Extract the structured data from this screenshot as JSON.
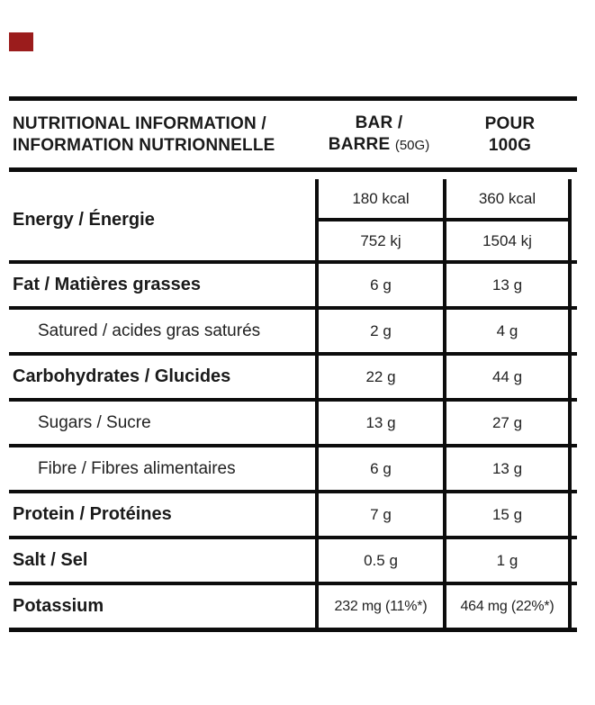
{
  "page": {
    "marker_color": "#9b1c1c"
  },
  "table": {
    "header": {
      "col1_line1": "NUTRITIONAL INFORMATION /",
      "col1_line2": "INFORMATION NUTRIONNELLE",
      "col2_line1": "BAR /",
      "col2_line2_bold": "BARRE",
      "col2_line2_note": "(50G)",
      "col3_line1": "POUR",
      "col3_line2": "100G"
    },
    "energy": {
      "label": "Energy / Énergie",
      "kcal_bar": "180 kcal",
      "kcal_per100": "360 kcal",
      "kj_bar": "752 kj",
      "kj_per100": "1504 kj"
    },
    "rows": [
      {
        "label": "Fat / Matières grasses",
        "bar": "6 g",
        "per100": "13 g",
        "style": "bold"
      },
      {
        "label": "Satured / acides gras saturés",
        "bar": "2 g",
        "per100": "4 g",
        "style": "sub"
      },
      {
        "label": "Carbohydrates / Glucides",
        "bar": "22 g",
        "per100": "44 g",
        "style": "bold"
      },
      {
        "label": "Sugars / Sucre",
        "bar": "13 g",
        "per100": "27 g",
        "style": "sub"
      },
      {
        "label": "Fibre / Fibres alimentaires",
        "bar": "6 g",
        "per100": "13 g",
        "style": "sub"
      },
      {
        "label": "Protein / Protéines",
        "bar": "7 g",
        "per100": "15 g",
        "style": "bold"
      },
      {
        "label": "Salt / Sel",
        "bar": "0.5 g",
        "per100": "1 g",
        "style": "bold"
      },
      {
        "label": "Potassium",
        "bar": "232 mg (11%*)",
        "per100": "464 mg (22%*)",
        "style": "bold"
      }
    ]
  }
}
